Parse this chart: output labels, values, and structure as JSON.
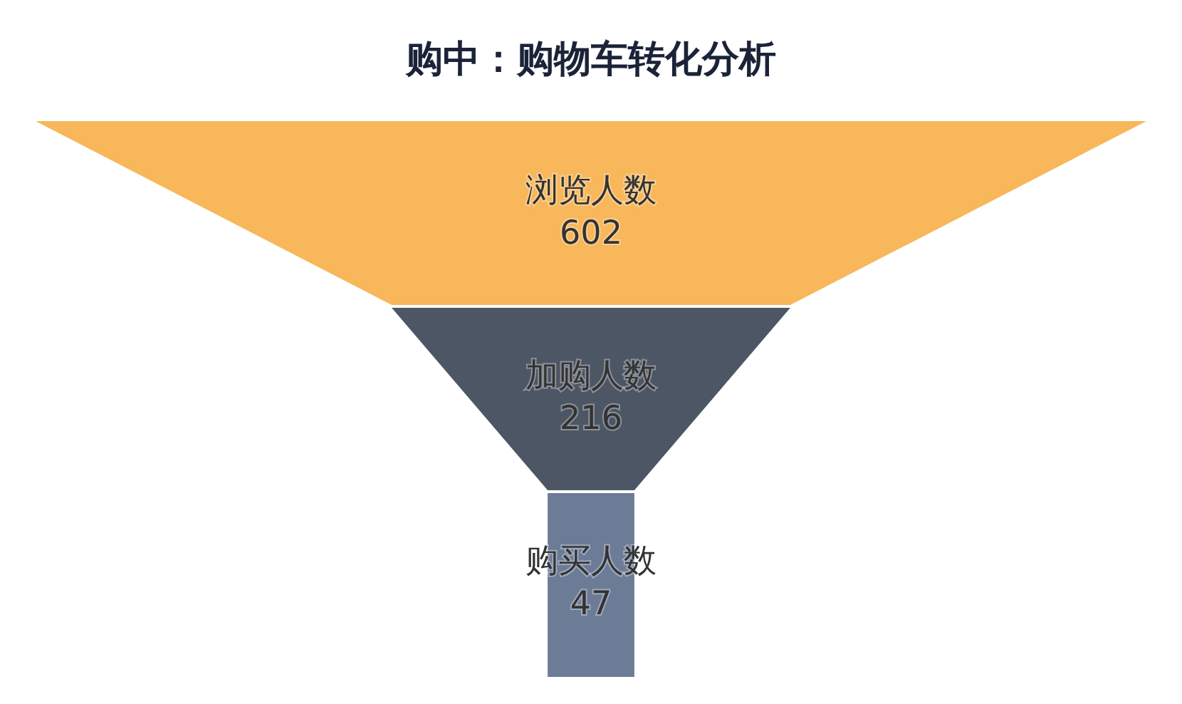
{
  "chart_data": {
    "type": "other",
    "title": "购中：购物车转化分析",
    "categories": [
      "浏览人数",
      "加购人数",
      "购买人数"
    ],
    "values": [
      602,
      216,
      47
    ],
    "colors": [
      "#f7b75a",
      "#4d5664",
      "#6c7c97"
    ],
    "data_labels": true
  }
}
